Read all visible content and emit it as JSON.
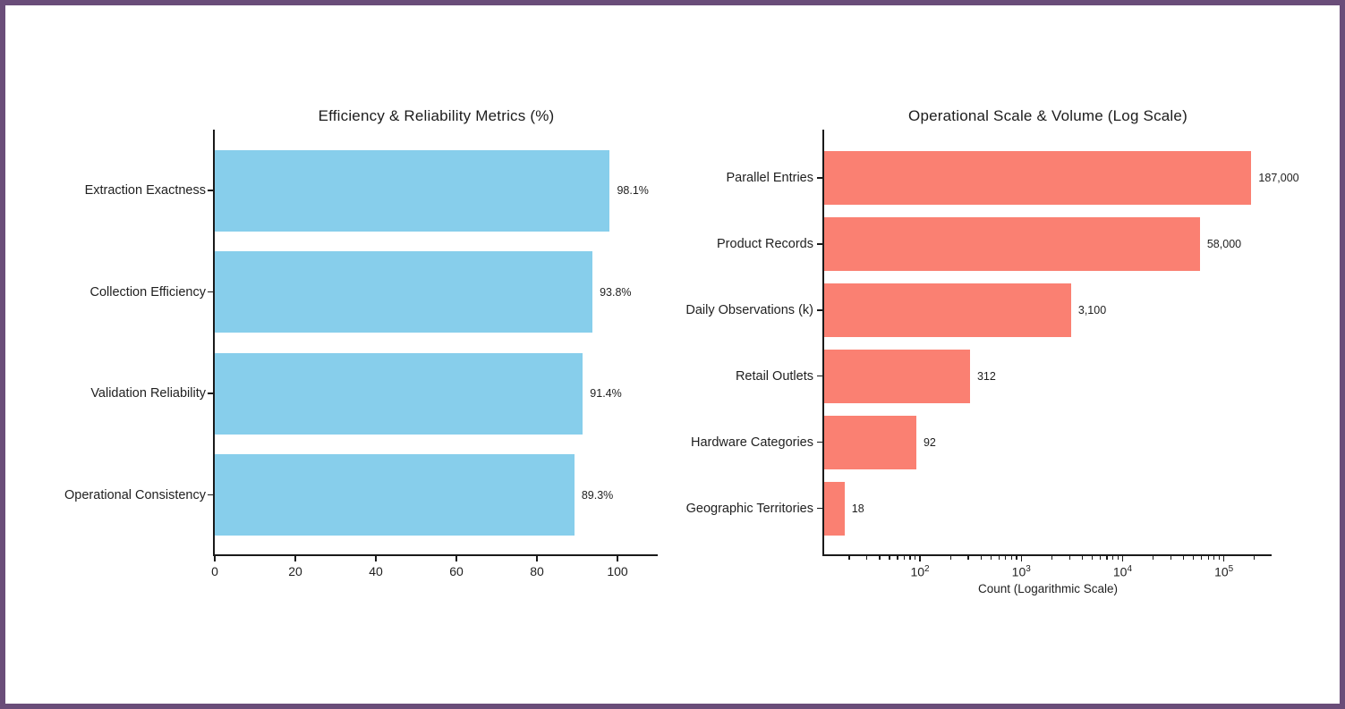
{
  "figure": {
    "background": "#ffffff",
    "border_color": "#6a4d79"
  },
  "chart_data": [
    {
      "type": "bar",
      "orientation": "horizontal",
      "title": "Efficiency & Reliability Metrics (%)",
      "xlabel": "",
      "ylabel": "",
      "bar_color": "#87ceeb",
      "categories": [
        "Extraction Exactness",
        "Collection Efficiency",
        "Validation Reliability",
        "Operational Consistency"
      ],
      "values": [
        98.1,
        93.8,
        91.4,
        89.3
      ],
      "value_labels": [
        "98.1%",
        "93.8%",
        "91.4%",
        "89.3%"
      ],
      "xscale": "linear",
      "xlim": [
        0,
        110
      ],
      "xticks": [
        0,
        20,
        40,
        60,
        80,
        100
      ],
      "grid": false,
      "legend": false
    },
    {
      "type": "bar",
      "orientation": "horizontal",
      "title": "Operational Scale & Volume (Log Scale)",
      "xlabel": "Count (Logarithmic Scale)",
      "ylabel": "",
      "bar_color": "#fa8072",
      "categories": [
        "Parallel Entries",
        "Product Records",
        "Daily Observations (k)",
        "Retail Outlets",
        "Hardware Categories",
        "Geographic Territories"
      ],
      "values": [
        187000,
        58000,
        3100,
        312,
        92,
        18
      ],
      "value_labels": [
        "187,000",
        "58,000",
        "3,100",
        "312",
        "92",
        "18"
      ],
      "xscale": "log",
      "xlim": [
        11.33,
        296000
      ],
      "xticks_exponents": [
        2,
        3,
        4,
        5
      ],
      "grid": false,
      "legend": false
    }
  ]
}
